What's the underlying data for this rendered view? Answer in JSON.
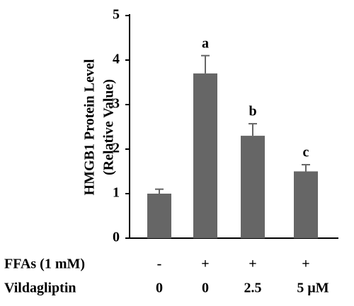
{
  "chart_data": {
    "type": "bar",
    "ylabel": [
      "HMGB1 Protein Level",
      "(Relative Value)"
    ],
    "values": [
      1.0,
      3.7,
      2.3,
      1.5
    ],
    "errors": [
      0.1,
      0.4,
      0.27,
      0.15
    ],
    "annotations": [
      null,
      "a",
      "b",
      "c"
    ],
    "category_rows": [
      {
        "name": "FFAs (1 mM)",
        "labels": [
          "-",
          "+",
          "+",
          "+"
        ]
      },
      {
        "name": "Vildagliptin",
        "labels": [
          "0",
          "0",
          "2.5",
          "5 μM"
        ]
      }
    ],
    "color": "#666666",
    "ylim": [
      0,
      5
    ],
    "yticks": [
      0,
      1,
      2,
      3,
      4,
      5
    ]
  }
}
